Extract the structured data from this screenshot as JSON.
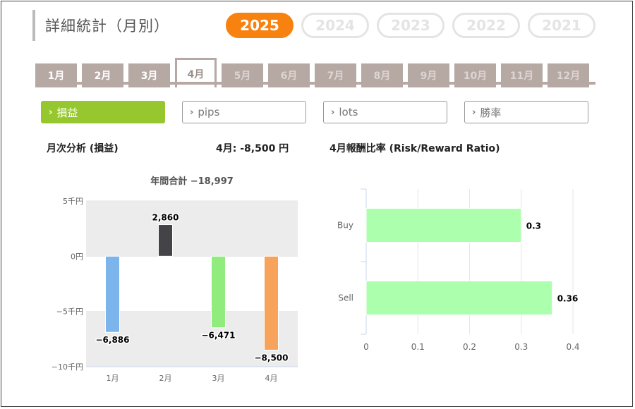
{
  "page_title": "詳細統計（月別）",
  "years": [
    "2025",
    "2024",
    "2023",
    "2022",
    "2021"
  ],
  "selected_year": "2025",
  "months": [
    "1月",
    "2月",
    "3月",
    "4月",
    "5月",
    "6月",
    "7月",
    "8月",
    "9月",
    "10月",
    "11月",
    "12月"
  ],
  "selected_month": "4月",
  "filters": [
    {
      "label": "損益",
      "active": true
    },
    {
      "label": "pips",
      "active": false
    },
    {
      "label": "lots",
      "active": false
    },
    {
      "label": "勝率",
      "active": false
    }
  ],
  "left_header": "月次分析 (損益)",
  "month_summary": "4月:  -8,500 円",
  "right_header": "4月報酬比率 (Risk/Reward Ratio)",
  "colors": {
    "orange": "#f7820f",
    "green": "#97c72e",
    "tab": "#b6a9a4"
  },
  "chart_data": [
    {
      "type": "bar",
      "title": "年間合計 −18,997",
      "categories": [
        "1月",
        "2月",
        "3月",
        "4月"
      ],
      "values": [
        -6886,
        2860,
        -6471,
        -8500
      ],
      "value_labels": [
        "−6,886",
        "2,860",
        "−6,471",
        "−8,500"
      ],
      "colors": [
        "#7cb5ec",
        "#434348",
        "#90ed7d",
        "#f7a35c"
      ],
      "yticks": [
        5000,
        0,
        -5000,
        -10000
      ],
      "ytick_labels": [
        "5千円",
        "0円",
        "−5千円",
        "−10千円"
      ],
      "ylim": [
        -10000,
        5000
      ],
      "grid": "alternating bands"
    },
    {
      "type": "bar",
      "orientation": "horizontal",
      "categories": [
        "Buy",
        "Sell"
      ],
      "values": [
        0.3,
        0.36
      ],
      "value_labels": [
        "0.3",
        "0.36"
      ],
      "color": "#acffac",
      "xticks": [
        0,
        0.1,
        0.2,
        0.3,
        0.4
      ],
      "xtick_labels": [
        "0",
        "0.1",
        "0.2",
        "0.3",
        "0.4"
      ],
      "xlim": [
        0,
        0.4
      ],
      "grid": true
    }
  ]
}
